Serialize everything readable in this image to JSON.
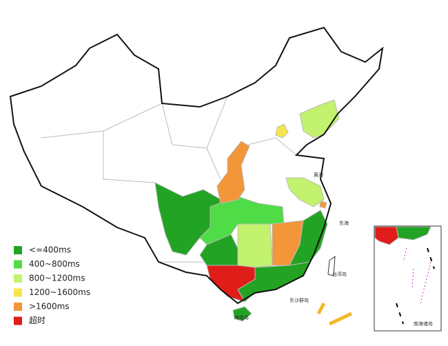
{
  "legend": {
    "items": [
      {
        "label": "<=400ms",
        "color": "#22a323"
      },
      {
        "label": "400~800ms",
        "color": "#4fdc46"
      },
      {
        "label": "800~1200ms",
        "color": "#c2f26e"
      },
      {
        "label": "1200~1600ms",
        "color": "#f4e64a"
      },
      {
        "label": ">1600ms",
        "color": "#f3963a"
      },
      {
        "label": "超时",
        "color": "#e01d18"
      }
    ]
  },
  "map_labels": {
    "yellow_sea": "黄海",
    "east_sea": "东海",
    "taiwan": "台湾岛",
    "hainan": "海南岛",
    "dongsha": "东沙群岛",
    "south_sea_islands": "南海诸岛"
  }
}
